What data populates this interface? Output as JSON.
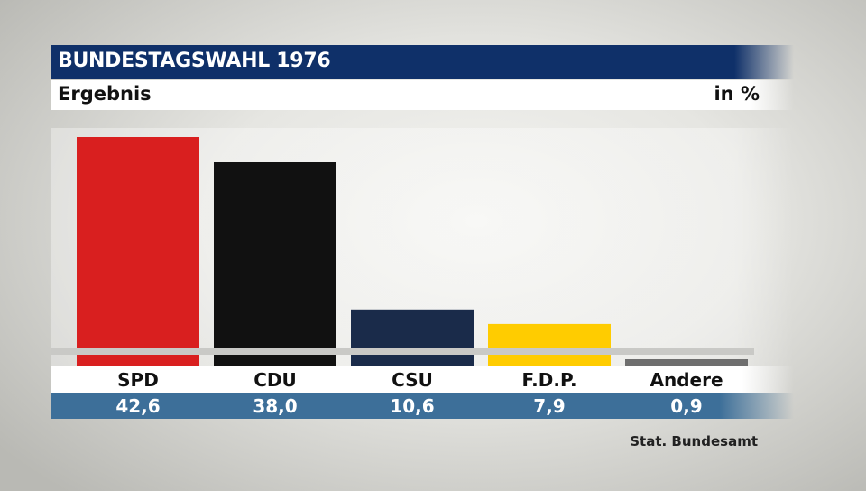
{
  "header": {
    "title": "BUNDESTAGSWAHL 1976",
    "subtitle": "Ergebnis",
    "unit": "in %"
  },
  "source": "Stat. Bundesamt",
  "chart_data": {
    "type": "bar",
    "title": "BUNDESTAGSWAHL 1976",
    "subtitle": "Ergebnis",
    "ylabel": "in %",
    "ylim": [
      0,
      42.6
    ],
    "categories": [
      "SPD",
      "CDU",
      "CSU",
      "F.D.P.",
      "Andere"
    ],
    "values": [
      42.6,
      38.0,
      10.6,
      7.9,
      0.9
    ],
    "value_labels": [
      "42,6",
      "38,0",
      "10,6",
      "7,9",
      "0,9"
    ],
    "colors": [
      "#d91f1f",
      "#111111",
      "#1a2b4a",
      "#ffcc00",
      "#6e6e6e"
    ],
    "grid": false,
    "legend": "none"
  }
}
